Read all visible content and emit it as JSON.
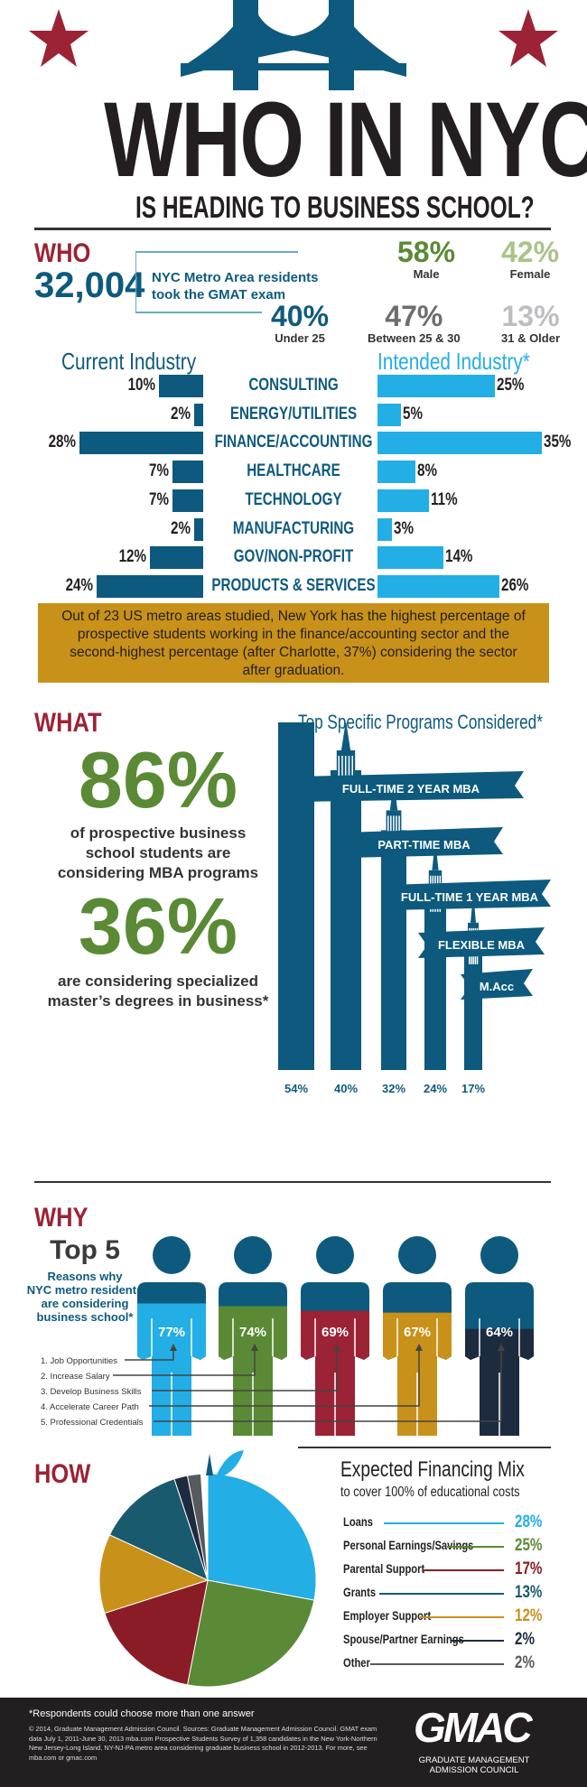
{
  "title": {
    "line1": "WHO IN NYC",
    "line2": "IS HEADING TO BUSINESS SCHOOL?"
  },
  "colors": {
    "red": "#9b2335",
    "navy": "#0d5a7e",
    "light_blue": "#23aee5",
    "green": "#5a8a35",
    "gold": "#c8911a",
    "dark": "#1d2b3f",
    "teal": "#1a5a6e"
  },
  "who": {
    "header": "WHO",
    "count": "32,004",
    "count_label1": "NYC Metro Area residents",
    "count_label2": "took the GMAT exam",
    "gender": [
      {
        "pct": "58%",
        "label": "Male",
        "color": "#5a8a35"
      },
      {
        "pct": "42%",
        "label": "Female",
        "color": "#a9c38a"
      }
    ],
    "age": [
      {
        "pct": "40%",
        "label": "Under 25",
        "color": "#0d5a7e"
      },
      {
        "pct": "47%",
        "label": "Between 25 & 30",
        "color": "#6d6e70"
      },
      {
        "pct": "13%",
        "label": "31 & Older",
        "color": "#bcbec0"
      }
    ]
  },
  "industry": {
    "current_header": "Current Industry",
    "intended_header": "Intended Industry*",
    "note": "Out of 23 US metro areas studied, New York has the highest percentage of prospective students working in the finance/accounting sector and the second-highest percentage (after Charlotte, 37%) considering the sector after graduation."
  },
  "chart_data": [
    {
      "type": "bar",
      "categories": [
        "CONSULTING",
        "ENERGY/UTILITIES",
        "FINANCE/ACCOUNTING",
        "HEALTHCARE",
        "TECHNOLOGY",
        "MANUFACTURING",
        "GOV/NON-PROFIT",
        "PRODUCTS & SERVICES"
      ],
      "series": [
        {
          "name": "Current Industry",
          "values": [
            10,
            2,
            28,
            7,
            7,
            2,
            12,
            24
          ],
          "labels": [
            "10%",
            "2%",
            "28%",
            "7%",
            "7%",
            "2%",
            "12%",
            "24%"
          ]
        },
        {
          "name": "Intended Industry*",
          "values": [
            25,
            5,
            35,
            8,
            11,
            3,
            14,
            26
          ],
          "labels": [
            "25%",
            "5%",
            "35%",
            "8%",
            "11%",
            "3%",
            "14%",
            "26%"
          ]
        }
      ]
    },
    {
      "type": "bar",
      "title": "Top Specific Programs Considered*",
      "categories": [
        "FULL-TIME 2 YEAR MBA",
        "PART-TIME MBA",
        "FULL-TIME 1 YEAR MBA",
        "FLEXIBLE MBA",
        "M.Acc"
      ],
      "values": [
        54,
        40,
        32,
        24,
        17
      ],
      "labels": [
        "54%",
        "40%",
        "32%",
        "24%",
        "17%"
      ]
    },
    {
      "type": "bar",
      "title": "Top 5",
      "categories": [
        "1. Job Opportunities",
        "2. Increase Salary",
        "3. Develop Business Skills",
        "4. Accelerate Career Path",
        "5. Professional Credentials"
      ],
      "values": [
        77,
        74,
        69,
        67,
        64
      ],
      "labels": [
        "77%",
        "74%",
        "69%",
        "67%",
        "64%"
      ],
      "colors": [
        "#23aee5",
        "#5a8a35",
        "#9b2335",
        "#c8911a",
        "#1d2b3f"
      ]
    },
    {
      "type": "pie",
      "title": "Expected Financing Mix",
      "subtitle": "to cover 100% of educational costs",
      "categories": [
        "Loans",
        "Personal Earnings/Savings",
        "Parental Support",
        "Grants",
        "Employer Support",
        "Spouse/Partner Earnings",
        "Other"
      ],
      "values": [
        28,
        25,
        17,
        13,
        12,
        2,
        2
      ],
      "labels": [
        "28%",
        "25%",
        "17%",
        "13%",
        "12%",
        "2%",
        "2%"
      ],
      "colors": [
        "#23aee5",
        "#5a8a35",
        "#8a1c26",
        "#1a5a6e",
        "#c8911a",
        "#1d2b3f",
        "#58595b"
      ]
    }
  ],
  "what": {
    "header": "WHAT",
    "mba_pct": "86%",
    "mba_text1": "of prospective business",
    "mba_text2": "school students are",
    "mba_text3": "considering MBA programs",
    "spec_pct": "36%",
    "spec_text1": "are considering specialized",
    "spec_text2": "master’s degrees in business*"
  },
  "why": {
    "header": "WHY",
    "top": "Top 5",
    "sub1": "Reasons why",
    "sub2": "NYC metro residents",
    "sub3": "are considering",
    "sub4": "business school*"
  },
  "how": {
    "header": "HOW"
  },
  "footer": {
    "note": "*Respondents could choose more than one answer",
    "source": "© 2014, Graduate Management Admission Council. Sources: Graduate Management Admission Council. GMAT exam data July 1, 2011-June 30, 2013 mba.com Prospective Students Survey of 1,358 candidates in the New York-Northern New Jersey-Long Island, NY-NJ-PA metro area considering graduate business school in 2012-2013. For more, see mba.com or gmac.com",
    "logo": "GMAC",
    "logo_sub1": "GRADUATE MANAGEMENT",
    "logo_sub2": "ADMISSION COUNCIL"
  }
}
